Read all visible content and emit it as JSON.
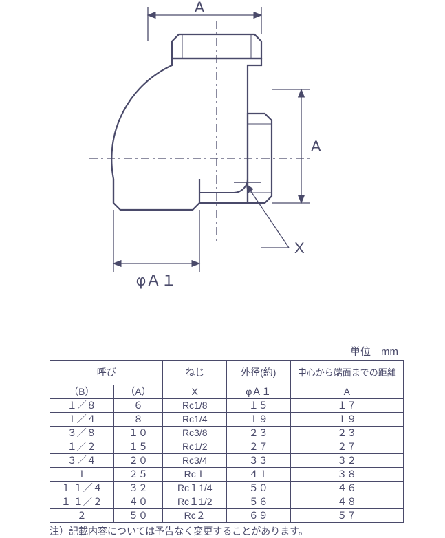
{
  "diagram": {
    "stroke": "#4a4a6a",
    "stroke_width": 2,
    "center_line_dash": "12 5 3 5",
    "labels": {
      "top_dim": "A",
      "right_dim": "A",
      "bottom_dim": "φＡ１",
      "pointer": "X"
    },
    "label_fontsize": 22,
    "label_color": "#4a4a6a"
  },
  "table": {
    "unit_label": "単位　mm",
    "headers": {
      "yobi": "呼び",
      "neji": "ねじ",
      "gaikei": "外径(約)",
      "chushin": "中心から端面までの距離",
      "col_b": "（B）",
      "col_a": "（A）",
      "col_x": "X",
      "col_phi_a1": "φＡ１",
      "col_A": "A"
    },
    "rows": [
      {
        "b": "１／８",
        "a": "６",
        "x": "Rc1/8",
        "phi": "１５",
        "A": "１７"
      },
      {
        "b": "１／４",
        "a": "８",
        "x": "Rc1/4",
        "phi": "１９",
        "A": "１９"
      },
      {
        "b": "３／８",
        "a": "１０",
        "x": "Rc3/8",
        "phi": "２３",
        "A": "２３"
      },
      {
        "b": "１／２",
        "a": "１５",
        "x": "Rc1/2",
        "phi": "２７",
        "A": "２７"
      },
      {
        "b": "３／４",
        "a": "２０",
        "x": "Rc3/4",
        "phi": "３３",
        "A": "３２"
      },
      {
        "b": "１",
        "a": "２５",
        "x": "Rc１",
        "phi": "４１",
        "A": "３８"
      },
      {
        "b": "１ １／４",
        "a": "３２",
        "x": "Rc１1/4",
        "phi": "５０",
        "A": "４６"
      },
      {
        "b": "１ １／２",
        "a": "４０",
        "x": "Rc１1/2",
        "phi": "５６",
        "A": "４８"
      },
      {
        "b": "２",
        "a": "５０",
        "x": "Rc２",
        "phi": "６９",
        "A": "５７"
      }
    ],
    "note": "注）記載内容については予告なく変更することがあります。",
    "border_color": "#4a4a6a",
    "text_color": "#4a4a6a",
    "col_widths_pct": [
      18,
      14,
      18,
      18,
      32
    ]
  }
}
